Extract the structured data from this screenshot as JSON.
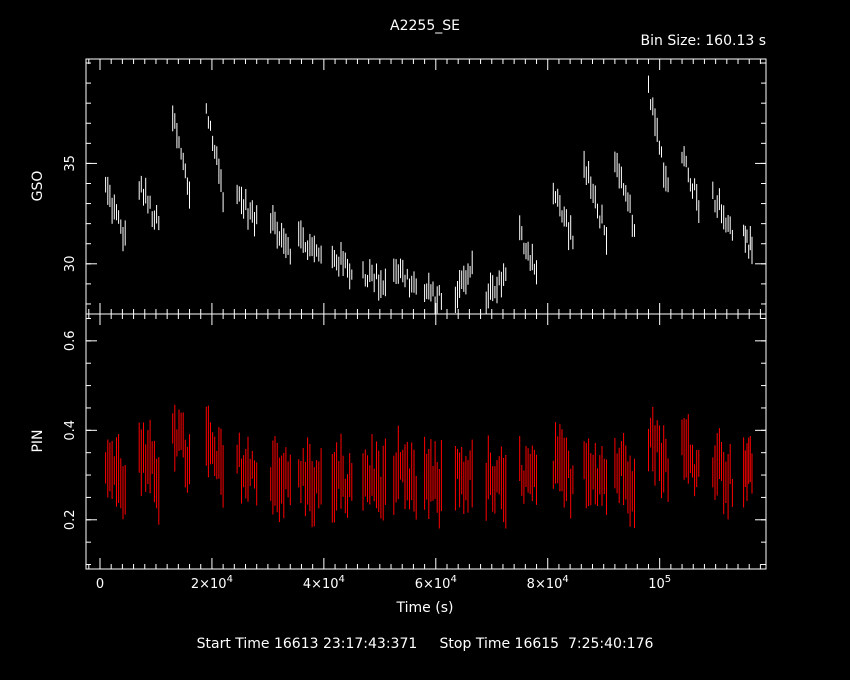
{
  "title": "A2255_SE",
  "bin_size": "Bin Size: 160.13 s",
  "footer": {
    "start": "Start Time 16613 23:17:43:371",
    "stop": "Stop Time 16615  7:25:40:176"
  },
  "colors": {
    "background": "#000000",
    "gso": "#ffffff",
    "pin": "#ff0000",
    "axes": "#ffffff"
  },
  "chart_data": {
    "type": "scatter",
    "x_axis": {
      "label": "Time (s)",
      "range": [
        -2500,
        119000
      ],
      "ticks": [
        {
          "value": 0,
          "mant": "0",
          "exp": ""
        },
        {
          "value": 20000,
          "mant": "2×10",
          "exp": "4"
        },
        {
          "value": 40000,
          "mant": "4×10",
          "exp": "4"
        },
        {
          "value": 60000,
          "mant": "6×10",
          "exp": "4"
        },
        {
          "value": 80000,
          "mant": "8×10",
          "exp": "4"
        },
        {
          "value": 100000,
          "mant": "10",
          "exp": "5"
        }
      ]
    },
    "panels": [
      {
        "name": "GSO",
        "ylabel": "GSO",
        "ylim": [
          27.5,
          40.2
        ],
        "yticks": [
          30,
          35
        ],
        "color": "#ffffff",
        "segments": [
          {
            "t0": 1000,
            "t1": 4500,
            "y0": 33.8,
            "y1": 31.2,
            "err": 0.5
          },
          {
            "t0": 7000,
            "t1": 10500,
            "y0": 34.0,
            "y1": 31.8,
            "err": 0.5
          },
          {
            "t0": 13000,
            "t1": 16000,
            "y0": 37.3,
            "y1": 33.5,
            "err": 0.5
          },
          {
            "t0": 19000,
            "t1": 22000,
            "y0": 37.8,
            "y1": 33.5,
            "err": 0.5
          },
          {
            "t0": 24500,
            "t1": 28000,
            "y0": 33.5,
            "y1": 32.0,
            "err": 0.5
          },
          {
            "t0": 30500,
            "t1": 34000,
            "y0": 32.3,
            "y1": 30.8,
            "err": 0.5
          },
          {
            "t0": 35500,
            "t1": 39500,
            "y0": 31.3,
            "y1": 30.3,
            "err": 0.5
          },
          {
            "t0": 41500,
            "t1": 45000,
            "y0": 30.5,
            "y1": 29.6,
            "err": 0.5
          },
          {
            "t0": 47000,
            "t1": 51000,
            "y0": 29.6,
            "y1": 29.0,
            "err": 0.5
          },
          {
            "t0": 52500,
            "t1": 56500,
            "y0": 29.9,
            "y1": 28.8,
            "err": 0.5
          },
          {
            "t0": 58000,
            "t1": 61000,
            "y0": 28.6,
            "y1": 28.2,
            "err": 0.5
          },
          {
            "t0": 63500,
            "t1": 66500,
            "y0": 28.5,
            "y1": 29.7,
            "err": 0.5
          },
          {
            "t0": 69000,
            "t1": 72500,
            "y0": 28.5,
            "y1": 29.3,
            "err": 0.5
          },
          {
            "t0": 75000,
            "t1": 78000,
            "y0": 31.5,
            "y1": 29.8,
            "err": 0.5
          },
          {
            "t0": 81000,
            "t1": 84500,
            "y0": 33.5,
            "y1": 31.3,
            "err": 0.5
          },
          {
            "t0": 86500,
            "t1": 90500,
            "y0": 34.8,
            "y1": 31.5,
            "err": 0.5
          },
          {
            "t0": 92000,
            "t1": 95500,
            "y0": 34.8,
            "y1": 32.0,
            "err": 0.5
          },
          {
            "t0": 98000,
            "t1": 101500,
            "y0": 38.5,
            "y1": 33.8,
            "err": 0.5
          },
          {
            "t0": 104000,
            "t1": 107000,
            "y0": 35.6,
            "y1": 33.0,
            "err": 0.5
          },
          {
            "t0": 109500,
            "t1": 113000,
            "y0": 33.5,
            "y1": 31.8,
            "err": 0.5
          },
          {
            "t0": 115000,
            "t1": 116500,
            "y0": 31.3,
            "y1": 30.8,
            "err": 0.5
          }
        ]
      },
      {
        "name": "PIN",
        "ylabel": "PIN",
        "ylim": [
          0.09,
          0.66
        ],
        "yticks": [
          0.2,
          0.4,
          0.6
        ],
        "color": "#ff0000",
        "segments": [
          {
            "t0": 1000,
            "t1": 4500,
            "y0": 0.33,
            "y1": 0.28,
            "err": 0.06
          },
          {
            "t0": 7000,
            "t1": 10500,
            "y0": 0.34,
            "y1": 0.29,
            "err": 0.06
          },
          {
            "t0": 13000,
            "t1": 16000,
            "y0": 0.42,
            "y1": 0.32,
            "err": 0.06
          },
          {
            "t0": 19000,
            "t1": 22000,
            "y0": 0.37,
            "y1": 0.3,
            "err": 0.06
          },
          {
            "t0": 24500,
            "t1": 28000,
            "y0": 0.33,
            "y1": 0.29,
            "err": 0.06
          },
          {
            "t0": 30500,
            "t1": 34000,
            "y0": 0.31,
            "y1": 0.28,
            "err": 0.06
          },
          {
            "t0": 35500,
            "t1": 39500,
            "y0": 0.3,
            "y1": 0.27,
            "err": 0.06
          },
          {
            "t0": 41500,
            "t1": 45000,
            "y0": 0.29,
            "y1": 0.27,
            "err": 0.06
          },
          {
            "t0": 47000,
            "t1": 51000,
            "y0": 0.3,
            "y1": 0.28,
            "err": 0.06
          },
          {
            "t0": 52500,
            "t1": 56500,
            "y0": 0.3,
            "y1": 0.27,
            "err": 0.06
          },
          {
            "t0": 58000,
            "t1": 61000,
            "y0": 0.29,
            "y1": 0.27,
            "err": 0.06
          },
          {
            "t0": 63500,
            "t1": 66500,
            "y0": 0.31,
            "y1": 0.29,
            "err": 0.06
          },
          {
            "t0": 69000,
            "t1": 72500,
            "y0": 0.29,
            "y1": 0.26,
            "err": 0.06
          },
          {
            "t0": 75000,
            "t1": 78000,
            "y0": 0.31,
            "y1": 0.28,
            "err": 0.06
          },
          {
            "t0": 81000,
            "t1": 84500,
            "y0": 0.32,
            "y1": 0.29,
            "err": 0.06
          },
          {
            "t0": 86500,
            "t1": 90500,
            "y0": 0.33,
            "y1": 0.29,
            "err": 0.06
          },
          {
            "t0": 92000,
            "t1": 95500,
            "y0": 0.32,
            "y1": 0.29,
            "err": 0.06
          },
          {
            "t0": 98000,
            "t1": 101500,
            "y0": 0.39,
            "y1": 0.32,
            "err": 0.06
          },
          {
            "t0": 104000,
            "t1": 107000,
            "y0": 0.36,
            "y1": 0.31,
            "err": 0.06
          },
          {
            "t0": 109500,
            "t1": 113000,
            "y0": 0.34,
            "y1": 0.29,
            "err": 0.06
          },
          {
            "t0": 115000,
            "t1": 116500,
            "y0": 0.32,
            "y1": 0.3,
            "err": 0.06
          }
        ]
      }
    ]
  }
}
